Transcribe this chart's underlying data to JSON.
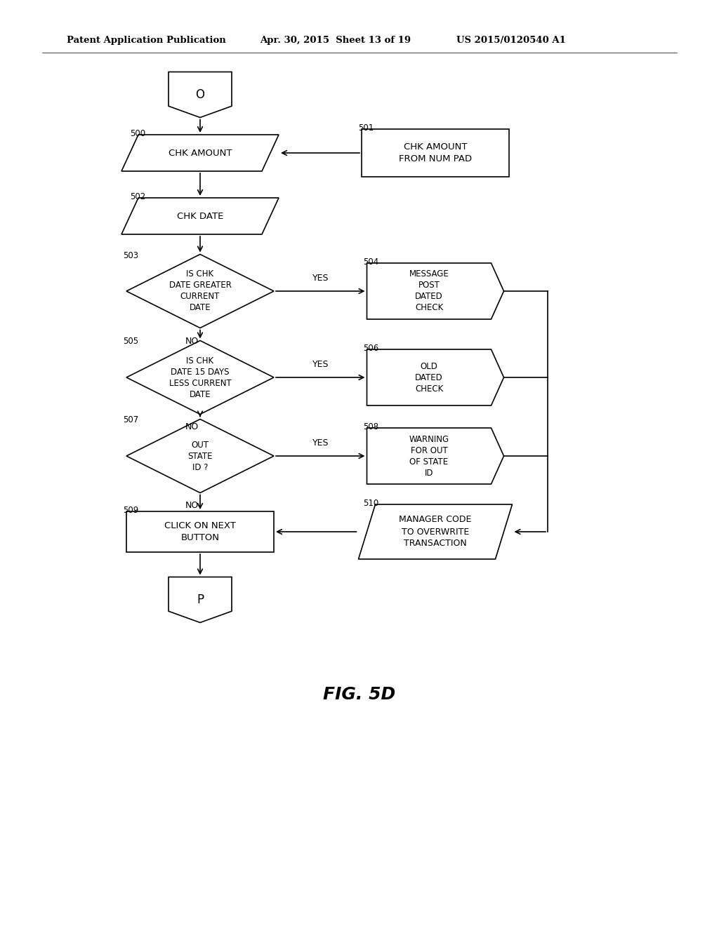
{
  "bg_color": "#ffffff",
  "header_left": "Patent Application Publication",
  "header_mid": "Apr. 30, 2015  Sheet 13 of 19",
  "header_right": "US 2015/0120540 A1",
  "fig_label": "FIG. 5D",
  "lw": 1.2
}
